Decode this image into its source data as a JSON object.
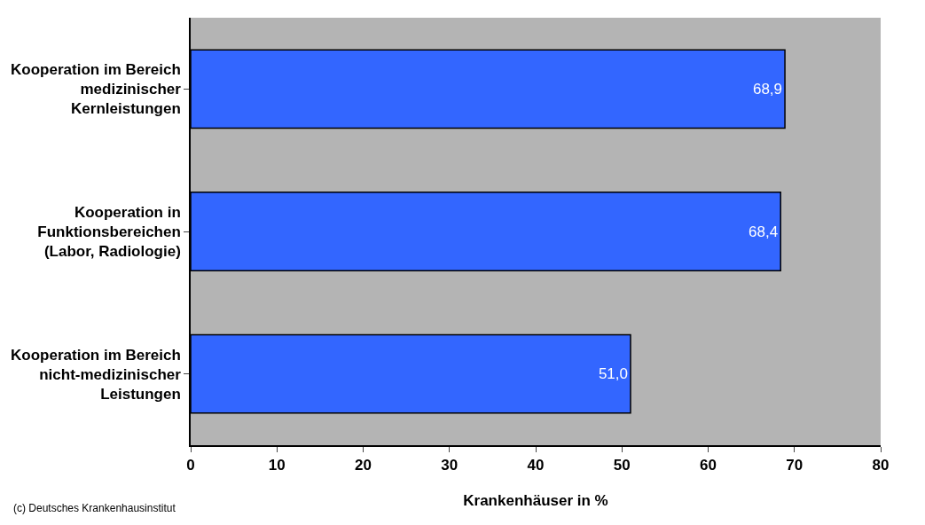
{
  "chart_data": {
    "type": "bar",
    "orientation": "horizontal",
    "xlabel": "Krankenhäuser in %",
    "categories": [
      "Kooperation im Bereich medizinischer Kernleistungen",
      "Kooperation in Funktionsbereichen (Labor, Radiologie)",
      "Kooperation im Bereich nicht-medizinischer Leistungen"
    ],
    "values": [
      68.9,
      68.4,
      51.0
    ],
    "value_labels": [
      "68,9",
      "68,4",
      "51,0"
    ],
    "color": "#3366ff",
    "xlim": [
      0,
      80
    ],
    "xticks": [
      0,
      10,
      20,
      30,
      40,
      50,
      60,
      70,
      80
    ],
    "grid": false,
    "legend": false,
    "annotations": [
      "(c) Deutsches Krankenhausinstitut"
    ]
  }
}
